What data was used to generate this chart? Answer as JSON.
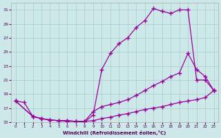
{
  "xlabel": "Windchill (Refroidissement éolien,°C)",
  "bg_color": "#cce8e8",
  "line_color": "#990099",
  "grid_color": "#aacccc",
  "xlim": [
    -0.5,
    23.5
  ],
  "ylim": [
    15,
    32
  ],
  "yticks": [
    15,
    17,
    19,
    21,
    23,
    25,
    27,
    29,
    31
  ],
  "xticks": [
    0,
    1,
    2,
    3,
    4,
    5,
    6,
    7,
    8,
    9,
    10,
    11,
    12,
    13,
    14,
    15,
    16,
    17,
    18,
    19,
    20,
    21,
    22,
    23
  ],
  "line1_x": [
    0,
    1,
    2,
    3,
    4,
    5,
    6,
    7,
    8,
    9,
    10,
    11,
    12,
    13,
    14,
    15,
    16,
    17,
    18,
    19,
    20,
    21,
    22,
    23
  ],
  "line1_y": [
    18.0,
    17.8,
    15.8,
    15.5,
    15.3,
    15.2,
    15.1,
    15.1,
    15.0,
    16.0,
    22.5,
    24.8,
    26.2,
    27.0,
    28.5,
    29.5,
    31.2,
    30.8,
    30.5,
    31.0,
    31.0,
    21.0,
    21.0,
    19.5
  ],
  "line2_x": [
    0,
    2,
    3,
    4,
    5,
    6,
    7,
    8,
    9,
    10,
    11,
    12,
    13,
    14,
    15,
    16,
    17,
    18,
    19,
    20,
    21,
    22,
    23
  ],
  "line2_y": [
    18.0,
    15.8,
    15.5,
    15.3,
    15.2,
    15.2,
    15.1,
    15.1,
    16.5,
    17.2,
    17.5,
    17.8,
    18.2,
    18.8,
    19.5,
    20.2,
    20.8,
    21.5,
    22.0,
    24.8,
    22.5,
    21.5,
    19.5
  ],
  "line3_x": [
    0,
    2,
    3,
    4,
    5,
    6,
    7,
    8,
    9,
    10,
    11,
    12,
    13,
    14,
    15,
    16,
    17,
    18,
    19,
    20,
    21,
    22,
    23
  ],
  "line3_y": [
    18.0,
    15.8,
    15.5,
    15.3,
    15.2,
    15.2,
    15.1,
    15.1,
    15.2,
    15.5,
    15.7,
    16.0,
    16.2,
    16.5,
    16.8,
    17.0,
    17.2,
    17.5,
    17.8,
    18.0,
    18.2,
    18.5,
    19.5
  ]
}
